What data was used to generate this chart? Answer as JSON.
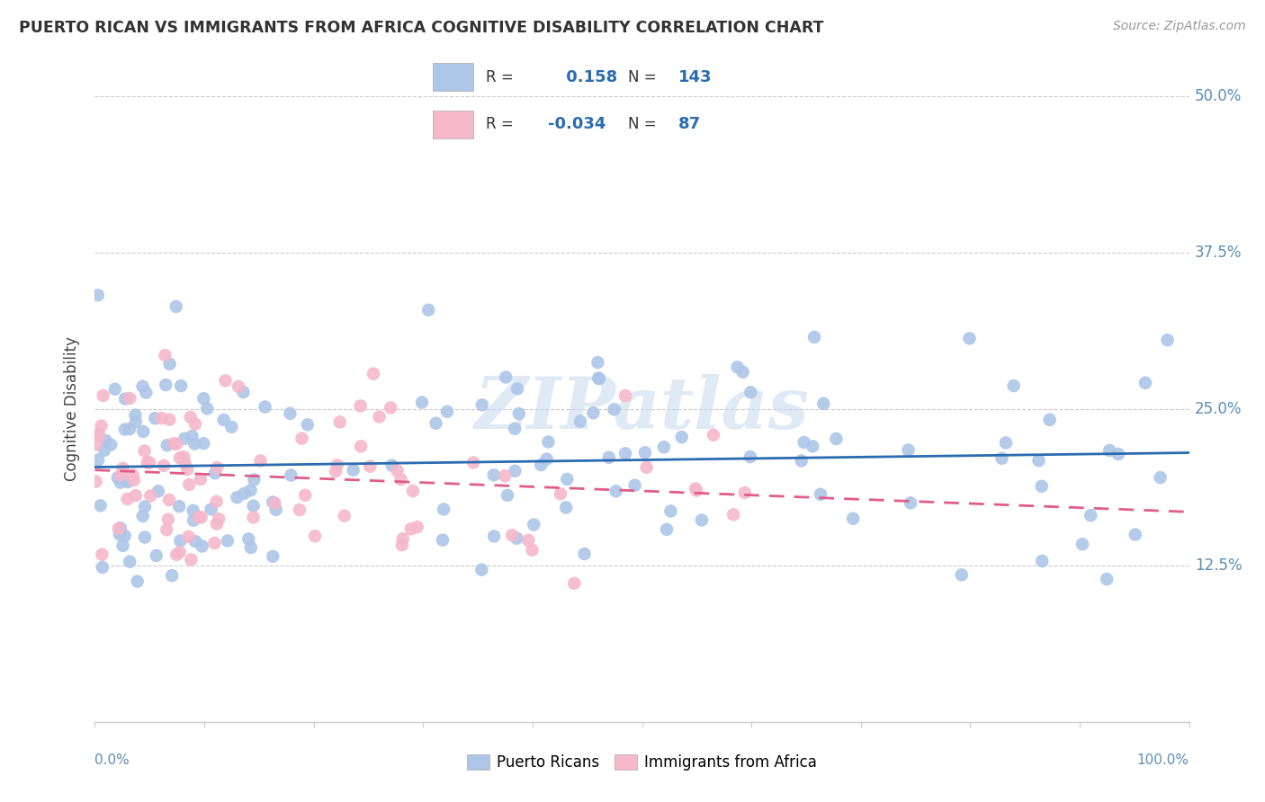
{
  "title": "PUERTO RICAN VS IMMIGRANTS FROM AFRICA COGNITIVE DISABILITY CORRELATION CHART",
  "source": "Source: ZipAtlas.com",
  "ylabel": "Cognitive Disability",
  "legend_label_blue": "Puerto Ricans",
  "legend_label_pink": "Immigrants from Africa",
  "r_blue": 0.158,
  "n_blue": 143,
  "r_pink": -0.034,
  "n_pink": 87,
  "blue_color": "#adc6e8",
  "pink_color": "#f5b8cb",
  "blue_line_color": "#2b6cb0",
  "pink_line_color": "#e05c8a",
  "watermark": "ZIPatlas",
  "xlim": [
    0,
    100
  ],
  "ylim": [
    0,
    50
  ],
  "yticks": [
    0,
    12.5,
    25.0,
    37.5,
    50.0
  ],
  "title_color": "#333333",
  "axis_color": "#5b8db8",
  "grid_color": "#cccccc",
  "background_color": "#ffffff"
}
